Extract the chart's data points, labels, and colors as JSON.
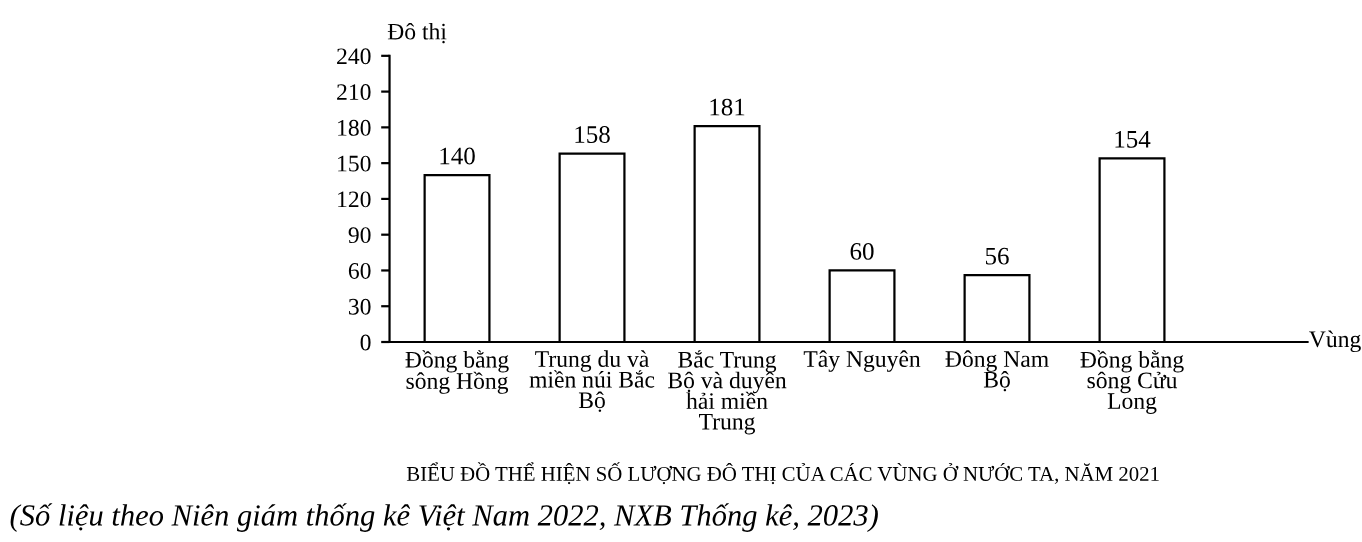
{
  "chart_data": {
    "type": "bar",
    "title": "BIỂU ĐỒ THỂ HIỆN SỐ LƯỢNG ĐÔ THỊ CỦA CÁC VÙNG Ở NƯỚC TA, NĂM 2021",
    "xlabel": "Vùng",
    "ylabel": "Đô thị",
    "categories": [
      "Đồng bằng\nsông Hồng",
      "Trung du và\nmiền núi Bắc\nBộ",
      "Bắc Trung\nBộ và duyên\nhải miền\nTrung",
      "Tây Nguyên",
      "Đông Nam\nBộ",
      "Đồng bằng\nsông Cửu\nLong"
    ],
    "values": [
      140,
      158,
      181,
      60,
      56,
      154
    ],
    "color": "#ffffff",
    "data_labels": true,
    "ylim": [
      0,
      240
    ],
    "yticks": [
      0,
      30,
      60,
      90,
      120,
      150,
      180,
      210,
      240
    ],
    "grid": false,
    "legend": false,
    "annotations": [
      "(Số liệu theo Niên giám thống kê Việt Nam 2022, NXB Thống kê, 2023)"
    ]
  }
}
